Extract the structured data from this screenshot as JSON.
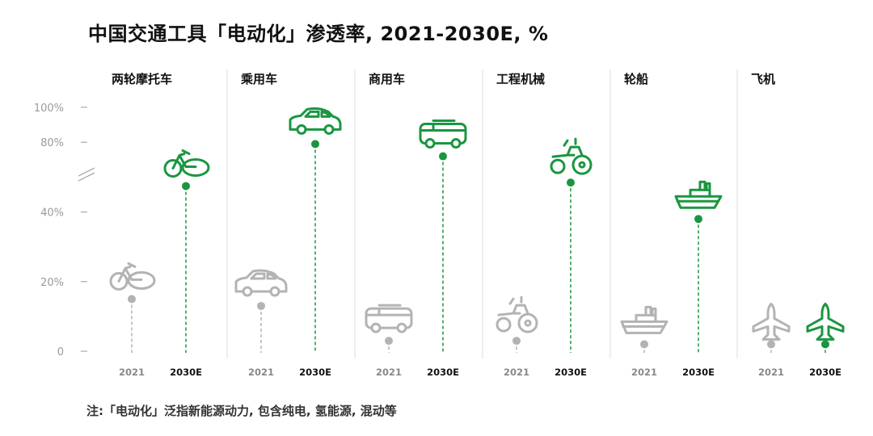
{
  "title": "中国交通工具「电动化」渗透率, 2021-2030E, %",
  "footnote": "注:「电动化」泛指新能源动力, 包含纯电, 氢能源, 混动等",
  "colors": {
    "accent": "#1a9641",
    "muted": "#b3b3b3",
    "divider": "#dddddd",
    "text": "#111111"
  },
  "chart_data": {
    "type": "scatter",
    "title": "中国交通工具「电动化」渗透率, 2021-2030E, %",
    "ylabel": "",
    "yticks": [
      "0",
      "20%",
      "40%",
      "80%",
      "100%"
    ],
    "ylim": [
      0,
      100
    ],
    "axis_break": "between 40% and 80%",
    "x_labels": [
      "2021",
      "2030E"
    ],
    "categories": [
      {
        "name": "两轮摩托车",
        "icon": "motorcycle-icon",
        "values": [
          15,
          55
        ]
      },
      {
        "name": "乘用车",
        "icon": "car-icon",
        "values": [
          13,
          79
        ]
      },
      {
        "name": "商用车",
        "icon": "bus-icon",
        "values": [
          3,
          72
        ]
      },
      {
        "name": "工程机械",
        "icon": "tractor-icon",
        "values": [
          3,
          57
        ]
      },
      {
        "name": "轮船",
        "icon": "ship-icon",
        "values": [
          2,
          38
        ]
      },
      {
        "name": "飞机",
        "icon": "plane-icon",
        "values": [
          2,
          2
        ]
      }
    ]
  }
}
